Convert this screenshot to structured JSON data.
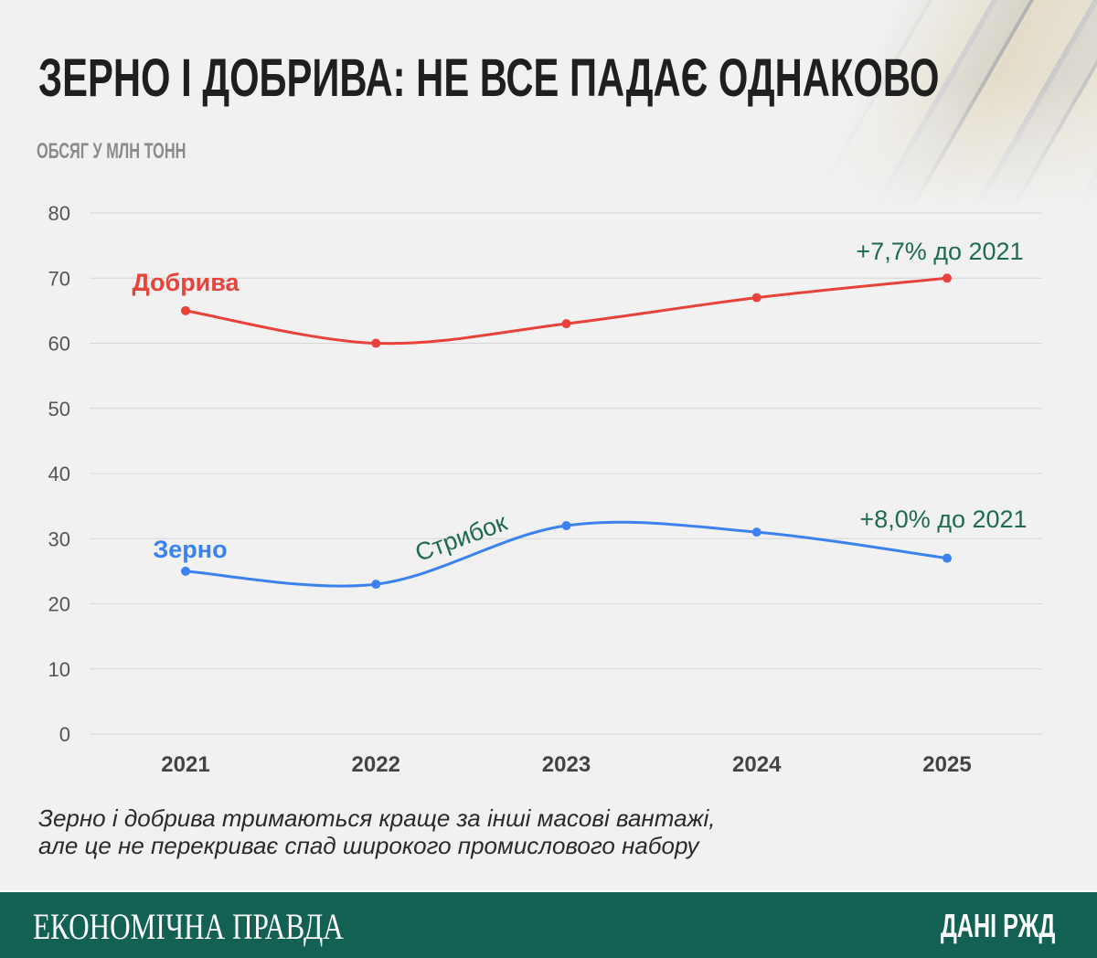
{
  "header": {
    "title": "ЗЕРНО І ДОБРИВА: НЕ ВСЕ ПАДАЄ ОДНАКОВО",
    "unit": "ОБСЯГ У МЛН ТОНН"
  },
  "chart_data": {
    "type": "line",
    "title": "ЗЕРНО І ДОБРИВА: НЕ ВСЕ ПАДАЄ ОДНАКОВО",
    "ylabel": "ОБСЯГ У МЛН ТОНН",
    "xlabel": "",
    "categories": [
      "2021",
      "2022",
      "2023",
      "2024",
      "2025"
    ],
    "ylim": [
      0,
      80
    ],
    "yticks": [
      "0",
      "10",
      "20",
      "30",
      "40",
      "50",
      "60",
      "70",
      "80"
    ],
    "grid": true,
    "series": [
      {
        "name": "Добрива",
        "color": "#e8423a",
        "values": [
          65,
          60,
          63,
          67,
          70
        ],
        "annotation": "+7,7% до 2021"
      },
      {
        "name": "Зерно",
        "color": "#3b82f0",
        "values": [
          25,
          23,
          32,
          31,
          27
        ],
        "annotation": "+8,0% до 2021"
      }
    ],
    "annotations": [
      "Стрибок"
    ],
    "annotation_color": "#1d6b50"
  },
  "note": {
    "line1": "Зерно і добрива тримаються краще за інші масові вантажі,",
    "line2": "але це не перекриває спад широкого промислового набору"
  },
  "footer": {
    "brand": "ЕКОНОМІЧНА ПРАВДА",
    "source": "ДАНІ РЖД"
  }
}
